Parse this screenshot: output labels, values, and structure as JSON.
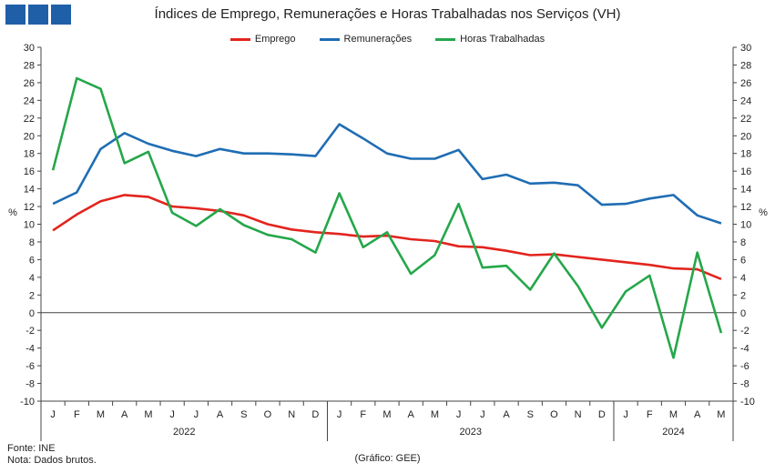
{
  "brand": {
    "logo_color": "#1f5fa8"
  },
  "chart_data": {
    "type": "line",
    "title": "Índices de Emprego, Remunerações e Horas Trabalhadas nos Serviços (VH)",
    "ylabel_left": "%",
    "ylabel_right": "%",
    "ylim": [
      -10,
      30
    ],
    "yticks": [
      -10,
      -8,
      -6,
      -4,
      -2,
      0,
      2,
      4,
      6,
      8,
      10,
      12,
      14,
      16,
      18,
      20,
      22,
      24,
      26,
      28,
      30
    ],
    "categories": [
      "J",
      "F",
      "M",
      "A",
      "M",
      "J",
      "J",
      "A",
      "S",
      "O",
      "N",
      "D",
      "J",
      "F",
      "M",
      "A",
      "M",
      "J",
      "J",
      "A",
      "S",
      "O",
      "N",
      "D",
      "J",
      "F",
      "M",
      "A",
      "M"
    ],
    "years": [
      {
        "label": "2022",
        "start": 0,
        "end": 11
      },
      {
        "label": "2023",
        "start": 12,
        "end": 23
      },
      {
        "label": "2024",
        "start": 24,
        "end": 28
      }
    ],
    "legend_position": "top-center",
    "grid": false,
    "series": [
      {
        "name": "Emprego",
        "color": "#e2241d",
        "values": [
          9.3,
          11.1,
          12.6,
          13.3,
          13.1,
          12.0,
          11.8,
          11.5,
          11.0,
          10.0,
          9.4,
          9.1,
          8.9,
          8.6,
          8.7,
          8.3,
          8.1,
          7.5,
          7.4,
          7.0,
          6.5,
          6.6,
          6.3,
          6.0,
          5.7,
          5.4,
          5.0,
          4.9,
          3.8
        ]
      },
      {
        "name": "Remunerações",
        "color": "#1f6db3",
        "values": [
          12.3,
          13.6,
          18.5,
          20.3,
          19.1,
          18.3,
          17.7,
          18.5,
          18.0,
          18.0,
          17.9,
          17.7,
          21.3,
          19.7,
          18.0,
          17.4,
          17.4,
          18.4,
          15.1,
          15.6,
          14.6,
          14.7,
          14.4,
          12.2,
          12.3,
          12.9,
          13.3,
          11.0,
          10.1
        ]
      },
      {
        "name": "Horas Trabalhadas",
        "color": "#25a74a",
        "values": [
          16.1,
          26.5,
          25.3,
          16.9,
          18.2,
          11.3,
          9.8,
          11.7,
          9.9,
          8.8,
          8.3,
          6.8,
          13.5,
          7.4,
          9.1,
          4.4,
          6.5,
          12.3,
          5.1,
          5.3,
          2.6,
          6.7,
          3.0,
          -1.7,
          2.4,
          4.2,
          -5.1,
          6.8,
          -2.3
        ]
      }
    ]
  },
  "footer": {
    "source": "Fonte: INE",
    "note": "Nota: Dados brutos.",
    "credit": "(Gráfico: GEE)"
  }
}
